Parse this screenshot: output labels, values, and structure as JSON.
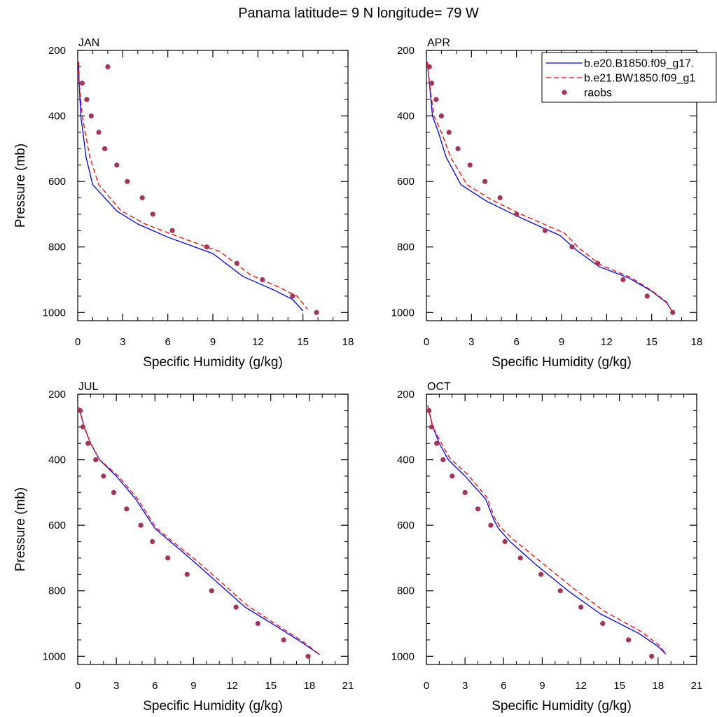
{
  "title": "Panama  latitude= 9 N longitude= 79 W",
  "colors": {
    "model1": "#0000ff",
    "model2": "#ff0000",
    "obs": "#a8325a",
    "axis": "#000000"
  },
  "legend": {
    "items": [
      {
        "label": "b.e20.B1850.f09_g17.",
        "style": "solid",
        "color": "#0000ff"
      },
      {
        "label": "b.e21.BW1850.f09_g1",
        "style": "dashed",
        "color": "#ff0000"
      },
      {
        "label": "raobs",
        "style": "dot",
        "color": "#a8325a"
      }
    ]
  },
  "chart_data": [
    {
      "type": "line",
      "panel": "JAN",
      "xlabel": "Specific Humidity (g/kg)",
      "ylabel": "Pressure (mb)",
      "xlim": [
        0,
        18
      ],
      "ylim": [
        200,
        1025
      ],
      "y_inverted": true,
      "xticks": [
        "0",
        "3",
        "6",
        "9",
        "12",
        "15",
        "18"
      ],
      "yticks": [
        "200",
        "400",
        "600",
        "800",
        "1000"
      ],
      "series": [
        {
          "name": "b.e20.B1850.f09_g17.",
          "style": "solid",
          "x": [
            0.05,
            0.1,
            0.2,
            0.35,
            0.55,
            1.0,
            2.6,
            4.0,
            6.0,
            9.0,
            11.0,
            13.0,
            14.3,
            15.0
          ],
          "y": [
            235,
            300,
            400,
            450,
            525,
            610,
            690,
            730,
            770,
            820,
            890,
            930,
            960,
            995
          ]
        },
        {
          "name": "b.e21.BW1850.f09_g1",
          "style": "dashed",
          "x": [
            0.05,
            0.1,
            0.3,
            0.5,
            0.8,
            1.4,
            2.9,
            4.5,
            6.5,
            9.5,
            11.5,
            13.5,
            14.6,
            15.3
          ],
          "y": [
            235,
            300,
            400,
            450,
            525,
            610,
            690,
            730,
            765,
            815,
            885,
            925,
            950,
            990
          ]
        }
      ],
      "observations": {
        "name": "raobs",
        "x": [
          2.0,
          0.3,
          0.6,
          0.9,
          1.4,
          1.8,
          2.6,
          3.3,
          4.3,
          5.0,
          6.3,
          8.6,
          10.6,
          12.3,
          14.3,
          15.9
        ],
        "y": [
          250,
          300,
          350,
          400,
          450,
          500,
          550,
          600,
          650,
          700,
          750,
          800,
          850,
          900,
          950,
          1000
        ]
      }
    },
    {
      "type": "line",
      "panel": "APR",
      "xlabel": "Specific Humidity (g/kg)",
      "ylabel": "",
      "xlim": [
        0,
        18
      ],
      "ylim": [
        200,
        1025
      ],
      "y_inverted": true,
      "xticks": [
        "0",
        "3",
        "6",
        "9",
        "12",
        "15",
        "18"
      ],
      "yticks": [
        "200",
        "400",
        "600",
        "800",
        "1000"
      ],
      "series": [
        {
          "name": "b.e20.B1850.f09_g17.",
          "style": "solid",
          "x": [
            0.05,
            0.2,
            0.4,
            0.8,
            1.3,
            2.3,
            4.0,
            6.0,
            8.9,
            10.0,
            11.5,
            13.5,
            15.0,
            16.0,
            16.4
          ],
          "y": [
            235,
            300,
            400,
            450,
            525,
            610,
            660,
            705,
            765,
            810,
            860,
            895,
            935,
            970,
            1000
          ]
        },
        {
          "name": "b.e21.BW1850.f09_g1",
          "style": "dashed",
          "x": [
            0.05,
            0.2,
            0.5,
            1.0,
            1.6,
            2.7,
            4.3,
            6.3,
            9.2,
            10.2,
            11.6,
            13.6,
            15.0,
            16.0,
            16.4
          ],
          "y": [
            235,
            300,
            400,
            450,
            525,
            610,
            655,
            700,
            758,
            805,
            855,
            893,
            933,
            968,
            1000
          ]
        }
      ],
      "observations": {
        "name": "raobs",
        "x": [
          0.2,
          0.35,
          0.65,
          1.0,
          1.5,
          2.1,
          2.9,
          3.9,
          4.9,
          6.0,
          7.9,
          9.7,
          11.4,
          13.1,
          14.7,
          16.4
        ],
        "y": [
          250,
          300,
          350,
          400,
          450,
          500,
          550,
          600,
          650,
          700,
          750,
          800,
          850,
          900,
          950,
          1000
        ]
      }
    },
    {
      "type": "line",
      "panel": "JUL",
      "xlabel": "Specific Humidity (g/kg)",
      "ylabel": "Pressure (mb)",
      "xlim": [
        0,
        21
      ],
      "ylim": [
        200,
        1025
      ],
      "y_inverted": true,
      "xticks": [
        "0",
        "3",
        "6",
        "9",
        "12",
        "15",
        "18",
        "21"
      ],
      "yticks": [
        "200",
        "400",
        "600",
        "800",
        "1000"
      ],
      "series": [
        {
          "name": "b.e20.B1850.f09_g17.",
          "style": "solid",
          "x": [
            0.1,
            0.5,
            1.0,
            1.7,
            3.0,
            4.5,
            5.5,
            6.0,
            7.5,
            9.0,
            11.0,
            13.0,
            15.5,
            17.5,
            18.8
          ],
          "y": [
            240,
            300,
            350,
            400,
            450,
            520,
            580,
            610,
            660,
            710,
            780,
            850,
            910,
            960,
            995
          ]
        },
        {
          "name": "b.e21.BW1850.f09_g1",
          "style": "dashed",
          "x": [
            0.1,
            0.5,
            1.0,
            1.7,
            3.1,
            4.6,
            5.6,
            6.1,
            7.6,
            9.2,
            11.2,
            13.2,
            15.6,
            17.6,
            18.8
          ],
          "y": [
            240,
            300,
            350,
            400,
            448,
            517,
            578,
            608,
            657,
            707,
            776,
            846,
            907,
            958,
            995
          ]
        }
      ],
      "observations": {
        "name": "raobs",
        "x": [
          0.2,
          0.4,
          0.8,
          1.4,
          2.0,
          2.8,
          3.8,
          4.9,
          5.8,
          7.0,
          8.5,
          10.4,
          12.3,
          14.0,
          16.0,
          17.9
        ],
        "y": [
          250,
          300,
          350,
          400,
          450,
          500,
          550,
          600,
          650,
          700,
          750,
          800,
          850,
          900,
          950,
          1000
        ]
      }
    },
    {
      "type": "line",
      "panel": "OCT",
      "xlabel": "Specific Humidity (g/kg)",
      "ylabel": "",
      "xlim": [
        0,
        21
      ],
      "ylim": [
        200,
        1025
      ],
      "y_inverted": true,
      "xticks": [
        "0",
        "3",
        "6",
        "9",
        "12",
        "15",
        "18",
        "21"
      ],
      "yticks": [
        "200",
        "400",
        "600",
        "800",
        "1000"
      ],
      "series": [
        {
          "name": "b.e20.B1850.f09_g17.",
          "style": "solid",
          "x": [
            0.1,
            0.5,
            1.0,
            1.7,
            3.0,
            4.6,
            5.2,
            5.6,
            6.5,
            8.5,
            11.0,
            13.5,
            16.5,
            18.0,
            18.6
          ],
          "y": [
            235,
            300,
            350,
            400,
            450,
            520,
            580,
            610,
            650,
            720,
            800,
            870,
            930,
            970,
            993
          ]
        },
        {
          "name": "b.e21.BW1850.f09_g1",
          "style": "dashed",
          "x": [
            0.1,
            0.5,
            1.1,
            1.8,
            3.2,
            4.7,
            5.3,
            5.8,
            6.8,
            8.9,
            11.4,
            13.8,
            16.7,
            18.1,
            18.6
          ],
          "y": [
            235,
            300,
            345,
            395,
            445,
            515,
            578,
            608,
            645,
            712,
            792,
            862,
            925,
            967,
            993
          ]
        }
      ],
      "observations": {
        "name": "raobs",
        "x": [
          0.2,
          0.4,
          0.8,
          1.3,
          2.0,
          3.0,
          4.0,
          5.0,
          6.1,
          7.3,
          8.9,
          10.4,
          12.0,
          13.7,
          15.7,
          17.5
        ],
        "y": [
          250,
          300,
          350,
          400,
          450,
          500,
          550,
          600,
          650,
          700,
          750,
          800,
          850,
          900,
          950,
          1000
        ]
      }
    }
  ]
}
